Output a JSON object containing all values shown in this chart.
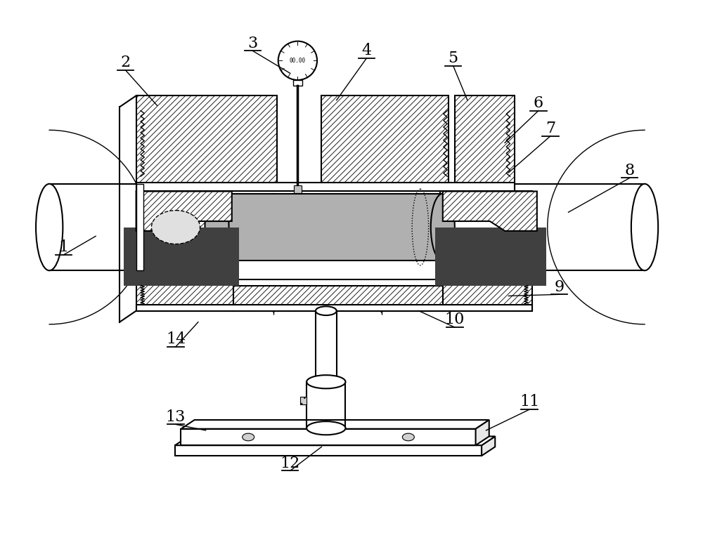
{
  "bg_color": "#ffffff",
  "figsize": [
    10.0,
    7.79
  ],
  "dpi": 100,
  "lw_main": 1.5,
  "lw_thin": 1.0,
  "hatch_lw": 0.5,
  "spec_color": "#b0b0b0",
  "dark_color": "#404040",
  "white": "#ffffff",
  "labels": [
    [
      1,
      105,
      355,
      148,
      340
    ],
    [
      2,
      188,
      108,
      230,
      165
    ],
    [
      3,
      358,
      82,
      408,
      122
    ],
    [
      4,
      510,
      92,
      470,
      158
    ],
    [
      5,
      626,
      102,
      645,
      158
    ],
    [
      6,
      740,
      162,
      695,
      215
    ],
    [
      7,
      756,
      196,
      700,
      255
    ],
    [
      8,
      862,
      252,
      780,
      308
    ],
    [
      9,
      768,
      408,
      700,
      420
    ],
    [
      10,
      628,
      452,
      580,
      440
    ],
    [
      11,
      728,
      562,
      670,
      600
    ],
    [
      12,
      408,
      644,
      450,
      622
    ],
    [
      13,
      255,
      582,
      295,
      600
    ],
    [
      14,
      255,
      478,
      285,
      455
    ]
  ]
}
